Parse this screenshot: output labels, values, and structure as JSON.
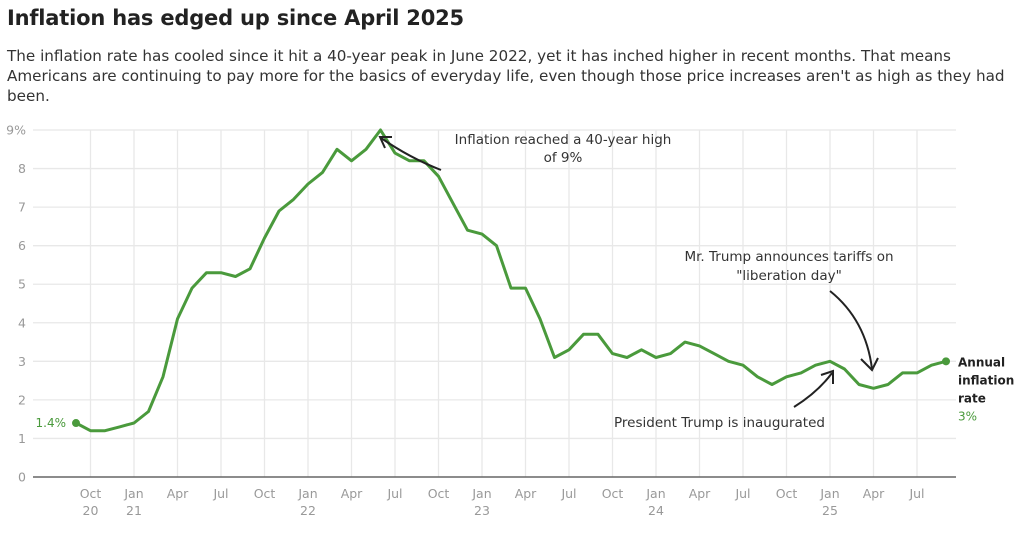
{
  "header": {
    "title": "Inflation has edged up since April 2025",
    "subtitle": "The inflation rate has cooled since it hit a 40-year peak in June 2022, yet it has inched higher in recent months. That means Americans are continuing to pay more for the basics of everyday life, even though those price increases aren't as high as they had been."
  },
  "chart_data": {
    "type": "line",
    "title": "Inflation has edged up since April 2025",
    "xlabel": "",
    "ylabel": "Annual inflation rate (%)",
    "ylim": [
      0,
      9
    ],
    "yticks": [
      {
        "value": 0,
        "label": "0"
      },
      {
        "value": 1,
        "label": "1"
      },
      {
        "value": 2,
        "label": "2"
      },
      {
        "value": 3,
        "label": "3"
      },
      {
        "value": 4,
        "label": "4"
      },
      {
        "value": 5,
        "label": "5"
      },
      {
        "value": 6,
        "label": "6"
      },
      {
        "value": 7,
        "label": "7"
      },
      {
        "value": 8,
        "label": "8"
      },
      {
        "value": 9,
        "label": "9%"
      }
    ],
    "xticks": [
      {
        "month_index": 1,
        "label": "Oct",
        "year": "20"
      },
      {
        "month_index": 4,
        "label": "Jan",
        "year": "21"
      },
      {
        "month_index": 7,
        "label": "Apr",
        "year": ""
      },
      {
        "month_index": 10,
        "label": "Jul",
        "year": ""
      },
      {
        "month_index": 13,
        "label": "Oct",
        "year": ""
      },
      {
        "month_index": 16,
        "label": "Jan",
        "year": "22"
      },
      {
        "month_index": 19,
        "label": "Apr",
        "year": ""
      },
      {
        "month_index": 22,
        "label": "Jul",
        "year": ""
      },
      {
        "month_index": 25,
        "label": "Oct",
        "year": ""
      },
      {
        "month_index": 28,
        "label": "Jan",
        "year": "23"
      },
      {
        "month_index": 31,
        "label": "Apr",
        "year": ""
      },
      {
        "month_index": 34,
        "label": "Jul",
        "year": ""
      },
      {
        "month_index": 37,
        "label": "Oct",
        "year": ""
      },
      {
        "month_index": 40,
        "label": "Jan",
        "year": "24"
      },
      {
        "month_index": 43,
        "label": "Apr",
        "year": ""
      },
      {
        "month_index": 46,
        "label": "Jul",
        "year": ""
      },
      {
        "month_index": 49,
        "label": "Oct",
        "year": ""
      },
      {
        "month_index": 52,
        "label": "Jan",
        "year": "25"
      },
      {
        "month_index": 55,
        "label": "Apr",
        "year": ""
      },
      {
        "month_index": 58,
        "label": "Jul",
        "year": ""
      }
    ],
    "grid": true,
    "series": [
      {
        "name": "Annual inflation rate",
        "color": "#4a9a3c",
        "start": "2020-09",
        "x": [
          "2020-09",
          "2020-10",
          "2020-11",
          "2020-12",
          "2021-01",
          "2021-02",
          "2021-03",
          "2021-04",
          "2021-05",
          "2021-06",
          "2021-07",
          "2021-08",
          "2021-09",
          "2021-10",
          "2021-11",
          "2021-12",
          "2022-01",
          "2022-02",
          "2022-03",
          "2022-04",
          "2022-05",
          "2022-06",
          "2022-07",
          "2022-08",
          "2022-09",
          "2022-10",
          "2022-11",
          "2022-12",
          "2023-01",
          "2023-02",
          "2023-03",
          "2023-04",
          "2023-05",
          "2023-06",
          "2023-07",
          "2023-08",
          "2023-09",
          "2023-10",
          "2023-11",
          "2023-12",
          "2024-01",
          "2024-02",
          "2024-03",
          "2024-04",
          "2024-05",
          "2024-06",
          "2024-07",
          "2024-08",
          "2024-09",
          "2024-10",
          "2024-11",
          "2024-12",
          "2025-01",
          "2025-02",
          "2025-03",
          "2025-04",
          "2025-05",
          "2025-06",
          "2025-07",
          "2025-08",
          "2025-09"
        ],
        "values": [
          1.4,
          1.2,
          1.2,
          1.3,
          1.4,
          1.7,
          2.6,
          4.1,
          4.9,
          5.3,
          5.3,
          5.2,
          5.4,
          6.2,
          6.9,
          7.2,
          7.6,
          7.9,
          8.5,
          8.2,
          8.5,
          9.0,
          8.4,
          8.2,
          8.2,
          7.8,
          7.1,
          6.4,
          6.3,
          6.0,
          4.9,
          4.9,
          4.1,
          3.1,
          3.3,
          3.7,
          3.7,
          3.2,
          3.1,
          3.3,
          3.1,
          3.2,
          3.5,
          3.4,
          3.2,
          3.0,
          2.9,
          2.6,
          2.4,
          2.6,
          2.7,
          2.9,
          3.0,
          2.8,
          2.4,
          2.3,
          2.4,
          2.7,
          2.7,
          2.9,
          3.0
        ]
      }
    ],
    "start_label": "1.4%",
    "end_label": {
      "line1": "Annual",
      "line2": "inflation",
      "line3": "rate",
      "value": "3%"
    },
    "annotations": [
      {
        "id": "peak",
        "line1": "Inflation reached a 40-year high",
        "line2": "of 9%",
        "points_to": "2022-06"
      },
      {
        "id": "tariffs",
        "line1": "Mr. Trump announces tariffs on",
        "line2": "\"liberation day\"",
        "points_to": "2025-04"
      },
      {
        "id": "inauguration",
        "line1": "President Trump is inaugurated",
        "points_to": "2025-01"
      }
    ]
  }
}
